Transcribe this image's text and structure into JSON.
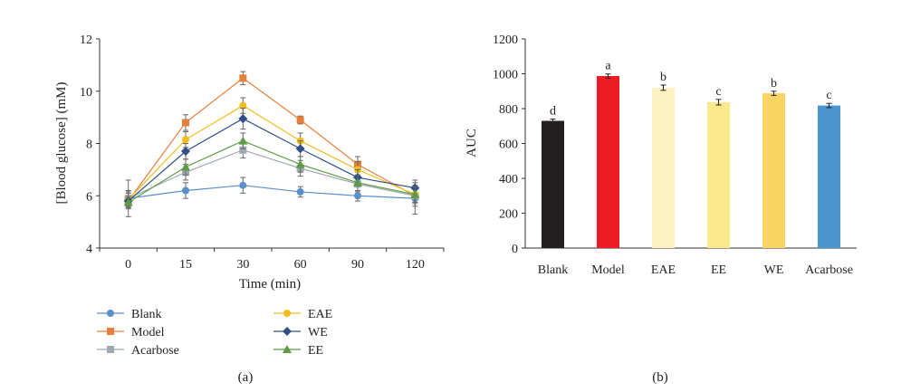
{
  "chart_data": [
    {
      "panel_label": "(a)",
      "type": "line",
      "xlabel": "Time (min)",
      "ylabel": "[Blood glucose] (mM)",
      "x": [
        0,
        15,
        30,
        60,
        90,
        120
      ],
      "ylim": [
        4,
        12
      ],
      "yticks": [
        4,
        6,
        8,
        10,
        12
      ],
      "grid": false,
      "legend_position": "bottom",
      "series": [
        {
          "name": "Blank",
          "color": "#5b8fc7",
          "marker": "circle",
          "values": [
            5.9,
            6.2,
            6.4,
            6.15,
            6.0,
            5.9
          ],
          "errors": [
            0.7,
            0.3,
            0.3,
            0.2,
            0.2,
            0.6
          ]
        },
        {
          "name": "Model",
          "color": "#e47f3c",
          "marker": "square",
          "values": [
            5.8,
            8.8,
            10.5,
            8.9,
            7.2,
            6.0
          ],
          "errors": [
            0.2,
            0.3,
            0.25,
            0.15,
            0.3,
            0.3
          ]
        },
        {
          "name": "Acarbose",
          "color": "#9ea9b3",
          "marker": "square",
          "values": [
            5.9,
            6.9,
            7.75,
            7.05,
            6.45,
            6.0
          ],
          "errors": [
            0.3,
            0.3,
            0.3,
            0.3,
            0.3,
            0.4
          ]
        },
        {
          "name": "EAE",
          "color": "#f2bc1c",
          "marker": "circle",
          "values": [
            5.85,
            8.15,
            9.45,
            8.1,
            7.0,
            6.05
          ],
          "errors": [
            0.3,
            0.3,
            0.3,
            0.3,
            0.3,
            0.3
          ]
        },
        {
          "name": "WE",
          "color": "#2f4f86",
          "marker": "diamond",
          "values": [
            5.8,
            7.7,
            8.95,
            7.8,
            6.7,
            6.3
          ],
          "errors": [
            0.3,
            0.3,
            0.4,
            0.3,
            0.3,
            0.3
          ]
        },
        {
          "name": "EE",
          "color": "#5d9b45",
          "marker": "triangle",
          "values": [
            5.75,
            7.1,
            8.1,
            7.2,
            6.5,
            6.05
          ],
          "errors": [
            0.2,
            0.3,
            0.3,
            0.3,
            0.3,
            0.3
          ]
        }
      ]
    },
    {
      "panel_label": "(b)",
      "type": "bar",
      "ylabel": "AUC",
      "xlabel": "",
      "categories": [
        "Blank",
        "Model",
        "EAE",
        "EE",
        "WE",
        "Acarbose"
      ],
      "values": [
        730,
        987,
        920,
        837,
        888,
        818
      ],
      "errors": [
        10,
        12,
        15,
        16,
        12,
        12
      ],
      "significance_letters": [
        "d",
        "a",
        "b",
        "c",
        "b",
        "c"
      ],
      "colors": [
        "#231f20",
        "#ed1c24",
        "#fef2c2",
        "#f9e98c",
        "#fbd464",
        "#4b96d1"
      ],
      "ylim": [
        0,
        1200
      ],
      "yticks": [
        0,
        200,
        400,
        600,
        800,
        1000,
        1200
      ],
      "grid": false
    }
  ]
}
